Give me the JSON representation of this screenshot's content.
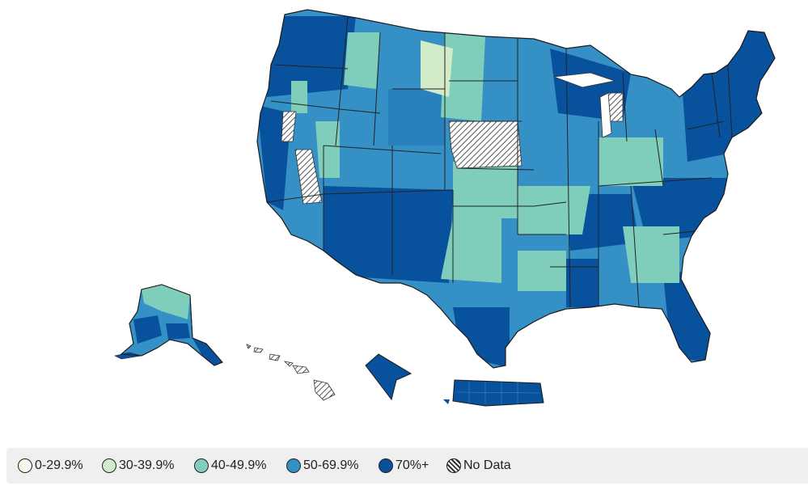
{
  "legend": {
    "items": [
      {
        "label": "0-29.9%",
        "color": "#f7fbee"
      },
      {
        "label": "30-39.9%",
        "color": "#d2ecca"
      },
      {
        "label": "40-49.9%",
        "color": "#7fcdbb"
      },
      {
        "label": "50-69.9%",
        "color": "#3590c6"
      },
      {
        "label": "70%+",
        "color": "#08519c"
      },
      {
        "label": "No Data",
        "color": "hatch"
      }
    ]
  },
  "map": {
    "regions": [
      "Continental US",
      "Alaska",
      "Hawaii",
      "District of Columbia",
      "Puerto Rico"
    ],
    "no_data_areas": [
      "Nebraska",
      "Hawaii",
      "Southwest Nevada",
      "Northeast California"
    ]
  }
}
